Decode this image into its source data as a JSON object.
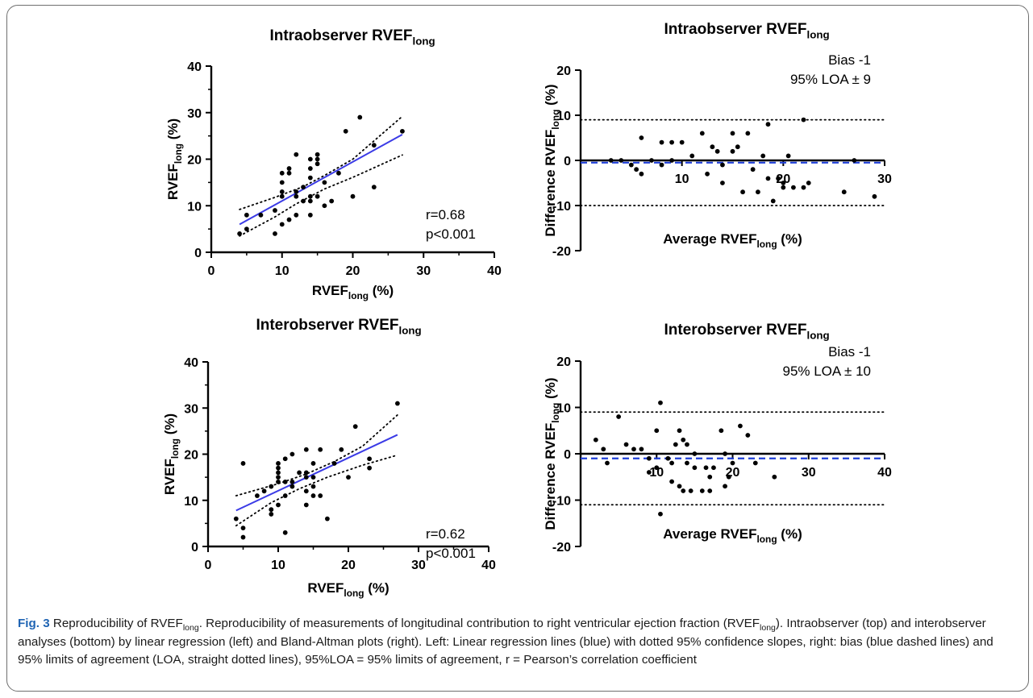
{
  "caption": {
    "fig_label": "Fig. 3",
    "segments": [
      {
        "text": " Reproducibility of RVEF"
      },
      {
        "text": "long",
        "sub": true
      },
      {
        "text": ". Reproducibility of measurements of longitudinal contribution to right ventricular ejection fraction (RVEF"
      },
      {
        "text": "long",
        "sub": true
      },
      {
        "text": "). Intraobserver (top) and interobserver analyses (bottom) by linear regression (left) and Bland-Altman plots (right). Left: Linear regression lines (blue) with dotted 95% confidence slopes, right: bias (blue dashed lines) and 95% limits of agreement (LOA, straight dotted lines), 95%LOA = 95% limits of agreement, r = Pearson’s correlation coefficient"
      }
    ]
  },
  "colors": {
    "regression_line": "#3b3be6",
    "bias_line": "#1f3fd8",
    "points": "#000000",
    "caption_label": "#1f64b3"
  },
  "chart_data": [
    {
      "type": "scatter",
      "title": "Intraobserver RVEF",
      "title_sub": "long",
      "xlabel": "RVEF",
      "xlabel_sub": "long",
      "xlabel_suffix": " (%)",
      "ylabel": "RVEF",
      "ylabel_sub": "long",
      "ylabel_suffix": " (%)",
      "xlim": [
        0,
        40
      ],
      "ylim": [
        0,
        40
      ],
      "xticks": [
        0,
        10,
        20,
        30,
        40
      ],
      "yticks": [
        0,
        10,
        20,
        30,
        40
      ],
      "annotation": [
        "r=0.68",
        "p<0.001"
      ],
      "regression": {
        "x": [
          4,
          27
        ],
        "y": [
          6,
          25.3
        ]
      },
      "ci_upper": {
        "x": [
          4,
          9,
          13,
          16,
          20,
          27
        ],
        "y": [
          9.2,
          11.8,
          14.1,
          16.5,
          20.0,
          29.2
        ]
      },
      "ci_lower": {
        "x": [
          4,
          9,
          12,
          16,
          20,
          27
        ],
        "y": [
          3.5,
          7.6,
          10.4,
          13.6,
          16.1,
          20.9
        ]
      },
      "points": [
        [
          4,
          4
        ],
        [
          5,
          5
        ],
        [
          5,
          8
        ],
        [
          7,
          8
        ],
        [
          9,
          4
        ],
        [
          9,
          9
        ],
        [
          10,
          6
        ],
        [
          10,
          12
        ],
        [
          10,
          13
        ],
        [
          10,
          15
        ],
        [
          10,
          17
        ],
        [
          11,
          17
        ],
        [
          11,
          7
        ],
        [
          11,
          18
        ],
        [
          12,
          8
        ],
        [
          12,
          12
        ],
        [
          12,
          13
        ],
        [
          12,
          21
        ],
        [
          13,
          11
        ],
        [
          13,
          14
        ],
        [
          14,
          11
        ],
        [
          14,
          12
        ],
        [
          14,
          16
        ],
        [
          14,
          18
        ],
        [
          14,
          20
        ],
        [
          14,
          8
        ],
        [
          15,
          12
        ],
        [
          15,
          19
        ],
        [
          15,
          20
        ],
        [
          15,
          21
        ],
        [
          16,
          10
        ],
        [
          16,
          15
        ],
        [
          17,
          11
        ],
        [
          18,
          17
        ],
        [
          19,
          26
        ],
        [
          20,
          12
        ],
        [
          21,
          29
        ],
        [
          23,
          23
        ],
        [
          23,
          14
        ],
        [
          27,
          26
        ]
      ]
    },
    {
      "type": "scatter",
      "title": "Intraobserver RVEF",
      "title_sub": "long",
      "xlabel": "Average RVEF",
      "xlabel_sub": "long",
      "xlabel_suffix": " (%)",
      "ylabel": "Difference RVEF",
      "ylabel_sub": "long",
      "ylabel_suffix": " (%)",
      "xlim": [
        0,
        30
      ],
      "ylim": [
        -20,
        20
      ],
      "xticks": [
        10,
        20,
        30
      ],
      "yticks": [
        -20,
        -10,
        0,
        10,
        20
      ],
      "annotation": [
        "Bias -1",
        "95% LOA ± 9"
      ],
      "bias": -0.5,
      "loa_upper": 9,
      "loa_lower": -10,
      "points": [
        [
          3,
          0
        ],
        [
          4,
          0
        ],
        [
          5,
          -1
        ],
        [
          5.5,
          -2
        ],
        [
          6,
          5
        ],
        [
          6,
          -3
        ],
        [
          7,
          0
        ],
        [
          8,
          4
        ],
        [
          8,
          -1
        ],
        [
          9,
          4
        ],
        [
          9,
          0
        ],
        [
          10,
          4
        ],
        [
          11,
          1
        ],
        [
          12,
          6
        ],
        [
          12.5,
          -3
        ],
        [
          13,
          3
        ],
        [
          13.5,
          2
        ],
        [
          14,
          -1
        ],
        [
          14,
          -5
        ],
        [
          15,
          6
        ],
        [
          15,
          2
        ],
        [
          15.5,
          3
        ],
        [
          16,
          -7
        ],
        [
          16.5,
          6
        ],
        [
          17,
          -2
        ],
        [
          17.5,
          -7
        ],
        [
          18,
          1
        ],
        [
          18.5,
          8
        ],
        [
          18.5,
          -4
        ],
        [
          19,
          -9
        ],
        [
          19.5,
          -4
        ],
        [
          20,
          -5
        ],
        [
          20,
          -6
        ],
        [
          20.5,
          1
        ],
        [
          21,
          -6
        ],
        [
          22,
          9
        ],
        [
          22,
          -6
        ],
        [
          22.5,
          -5
        ],
        [
          26,
          -7
        ],
        [
          27,
          0
        ],
        [
          29,
          -8
        ],
        [
          31,
          1
        ]
      ]
    },
    {
      "type": "scatter",
      "title": "Interobserver RVEF",
      "title_sub": "long",
      "xlabel": "RVEF",
      "xlabel_sub": "long",
      "xlabel_suffix": " (%)",
      "ylabel": "RVEF",
      "ylabel_sub": "long",
      "ylabel_suffix": " (%)",
      "xlim": [
        0,
        40
      ],
      "ylim": [
        0,
        40
      ],
      "xticks": [
        0,
        10,
        20,
        30,
        40
      ],
      "yticks": [
        0,
        10,
        20,
        30,
        40
      ],
      "annotation": [
        "r=0.62",
        "p<0.001"
      ],
      "regression": {
        "x": [
          4,
          27
        ],
        "y": [
          7.8,
          24.2
        ]
      },
      "ci_upper": {
        "x": [
          4,
          10,
          14,
          18,
          22,
          27
        ],
        "y": [
          11.0,
          13.6,
          15.7,
          18.4,
          21.7,
          28.5
        ]
      },
      "ci_lower": {
        "x": [
          4,
          9,
          13,
          17,
          22,
          27
        ],
        "y": [
          4.5,
          9.5,
          12.5,
          15.0,
          17.6,
          19.8
        ]
      },
      "points": [
        [
          4,
          6
        ],
        [
          5,
          2
        ],
        [
          5,
          4
        ],
        [
          5,
          18
        ],
        [
          7,
          11
        ],
        [
          8,
          12
        ],
        [
          9,
          7
        ],
        [
          9,
          8
        ],
        [
          9,
          13
        ],
        [
          10,
          9
        ],
        [
          10,
          14
        ],
        [
          10,
          15
        ],
        [
          10,
          16
        ],
        [
          10,
          17
        ],
        [
          10,
          18
        ],
        [
          11,
          3
        ],
        [
          11,
          11
        ],
        [
          11,
          14
        ],
        [
          11,
          19
        ],
        [
          12,
          13
        ],
        [
          12,
          14
        ],
        [
          12,
          20
        ],
        [
          13,
          16
        ],
        [
          14,
          9
        ],
        [
          14,
          12
        ],
        [
          14,
          15
        ],
        [
          14,
          16
        ],
        [
          14,
          21
        ],
        [
          15,
          11
        ],
        [
          15,
          13
        ],
        [
          15,
          15
        ],
        [
          15,
          18
        ],
        [
          16,
          11
        ],
        [
          16,
          21
        ],
        [
          17,
          6
        ],
        [
          18,
          18
        ],
        [
          19,
          21
        ],
        [
          20,
          15
        ],
        [
          21,
          26
        ],
        [
          23,
          17
        ],
        [
          23,
          19
        ],
        [
          27,
          31
        ]
      ]
    },
    {
      "type": "scatter",
      "title": "Interobserver RVEF",
      "title_sub": "long",
      "xlabel": "Average RVEF",
      "xlabel_sub": "long",
      "xlabel_suffix": " (%)",
      "ylabel": "Difference RVEF",
      "ylabel_sub": "long",
      "ylabel_suffix": " (%)",
      "xlim": [
        0,
        40
      ],
      "ylim": [
        -20,
        20
      ],
      "xticks": [
        10,
        20,
        30,
        40
      ],
      "yticks": [
        -20,
        -10,
        0,
        10,
        20
      ],
      "annotation": [
        "Bias -1",
        "95% LOA ± 10"
      ],
      "bias": -1,
      "loa_upper": 9,
      "loa_lower": -11,
      "points": [
        [
          2,
          3
        ],
        [
          3,
          1
        ],
        [
          3.5,
          -2
        ],
        [
          5,
          8
        ],
        [
          6,
          2
        ],
        [
          7,
          1
        ],
        [
          8,
          1
        ],
        [
          9,
          -1
        ],
        [
          9,
          -4
        ],
        [
          10,
          5
        ],
        [
          10,
          -3
        ],
        [
          10.5,
          11
        ],
        [
          10.5,
          -13
        ],
        [
          11.5,
          -1
        ],
        [
          12,
          -2
        ],
        [
          12,
          -6
        ],
        [
          12.5,
          2
        ],
        [
          13,
          5
        ],
        [
          13,
          -7
        ],
        [
          13.5,
          3
        ],
        [
          13.5,
          -8
        ],
        [
          14,
          2
        ],
        [
          14,
          -2
        ],
        [
          14.5,
          -8
        ],
        [
          15,
          0
        ],
        [
          15,
          -3
        ],
        [
          16,
          -8
        ],
        [
          16.5,
          -3
        ],
        [
          17,
          -8
        ],
        [
          17,
          -5
        ],
        [
          17.5,
          -3
        ],
        [
          18.5,
          5
        ],
        [
          19,
          -7
        ],
        [
          19,
          0
        ],
        [
          19.5,
          -5
        ],
        [
          20,
          -2
        ],
        [
          21,
          6
        ],
        [
          22,
          4
        ],
        [
          23,
          -2
        ],
        [
          25.5,
          -5
        ]
      ]
    }
  ]
}
